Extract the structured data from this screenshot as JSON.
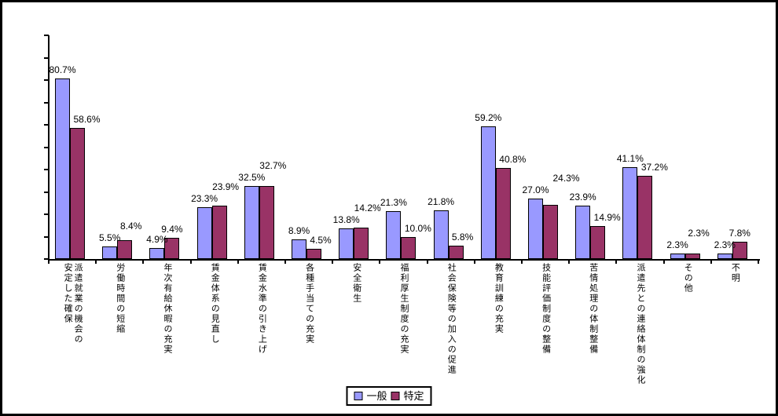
{
  "chart_data": {
    "type": "bar",
    "title": "",
    "xlabel": "",
    "ylabel": "",
    "ylim": [
      0,
      100
    ],
    "y_tick_interval": 10,
    "y_axis_labels_visible": false,
    "grid": false,
    "legend_position": "bottom-center",
    "value_suffix": "%",
    "data_labels": true,
    "categories": [
      "派遣就業の機会の安定した確保",
      "労働時間の短縮",
      "年次有給休暇の充実",
      "賃金体系の見直し",
      "賃金水準の引き上げ",
      "各種手当ての充実",
      "安全衛生",
      "福利厚生制度の充実",
      "社会保険等の加入の促進",
      "教育訓練の充実",
      "技能評価制度の整備",
      "苦情処理の体制整備",
      "派遣先との連絡体制の強化",
      "その他",
      "不明"
    ],
    "series": [
      {
        "name": "一般",
        "color": "#9999FF",
        "values": [
          80.7,
          5.5,
          4.9,
          23.3,
          32.5,
          8.9,
          13.8,
          21.3,
          21.8,
          59.2,
          27.0,
          23.9,
          41.1,
          2.3,
          2.3
        ]
      },
      {
        "name": "特定",
        "color": "#993366",
        "values": [
          58.6,
          8.4,
          9.4,
          23.9,
          32.7,
          4.5,
          14.2,
          10.0,
          5.8,
          40.8,
          24.3,
          14.9,
          37.2,
          2.3,
          7.8
        ]
      }
    ]
  },
  "frame": {
    "background": "#FFFFFF",
    "border_color": "#000000",
    "axis_color": "#000000"
  }
}
